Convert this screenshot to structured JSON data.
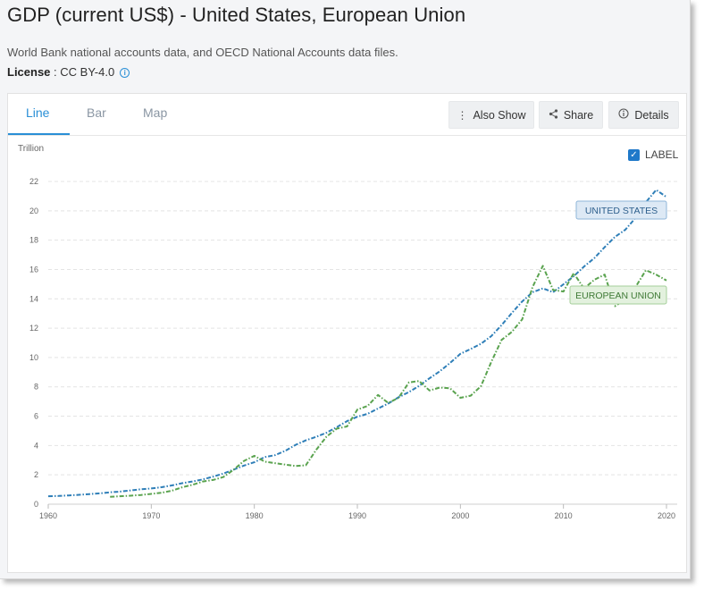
{
  "header": {
    "title": "GDP (current US$) - United States, European Union",
    "source": "World Bank national accounts data, and OECD National Accounts data files.",
    "license_label": "License",
    "license_value": " : CC BY-4.0"
  },
  "tabs": [
    {
      "label": "Line"
    },
    {
      "label": "Bar"
    },
    {
      "label": "Map"
    }
  ],
  "toolbar": {
    "also_show": "Also Show",
    "share": "Share",
    "details": "Details"
  },
  "label_toggle": {
    "text": "LABEL",
    "checked": true
  },
  "chart_data": {
    "type": "line",
    "ylabel": "Trillion",
    "ylim": [
      0,
      22
    ],
    "xlim": [
      1960,
      2020
    ],
    "yticks": [
      0,
      2,
      4,
      6,
      8,
      10,
      12,
      14,
      16,
      18,
      20,
      22
    ],
    "xticks": [
      1960,
      1970,
      1980,
      1990,
      2000,
      2010,
      2020
    ],
    "grid": true,
    "series": [
      {
        "name": "UNITED STATES",
        "color": "#2f7fb8",
        "label_bg": "#dde9f5",
        "label_border": "#8fb6d9",
        "x": [
          1960,
          1961,
          1962,
          1963,
          1964,
          1965,
          1966,
          1967,
          1968,
          1969,
          1970,
          1971,
          1972,
          1973,
          1974,
          1975,
          1976,
          1977,
          1978,
          1979,
          1980,
          1981,
          1982,
          1983,
          1984,
          1985,
          1986,
          1987,
          1988,
          1989,
          1990,
          1991,
          1992,
          1993,
          1994,
          1995,
          1996,
          1997,
          1998,
          1999,
          2000,
          2001,
          2002,
          2003,
          2004,
          2005,
          2006,
          2007,
          2008,
          2009,
          2010,
          2011,
          2012,
          2013,
          2014,
          2015,
          2016,
          2017,
          2018,
          2019,
          2020
        ],
        "values": [
          0.54,
          0.56,
          0.6,
          0.64,
          0.69,
          0.74,
          0.81,
          0.86,
          0.94,
          1.02,
          1.07,
          1.16,
          1.28,
          1.43,
          1.55,
          1.69,
          1.88,
          2.09,
          2.36,
          2.63,
          2.86,
          3.21,
          3.34,
          3.64,
          4.04,
          4.35,
          4.59,
          4.87,
          5.25,
          5.66,
          5.96,
          6.16,
          6.52,
          6.86,
          7.29,
          7.64,
          8.07,
          8.58,
          9.06,
          9.63,
          10.25,
          10.58,
          10.94,
          11.46,
          12.21,
          13.04,
          13.82,
          14.45,
          14.71,
          14.45,
          14.99,
          15.54,
          16.2,
          16.78,
          17.52,
          18.22,
          18.71,
          19.52,
          20.58,
          21.43,
          20.94
        ]
      },
      {
        "name": "EUROPEAN UNION",
        "color": "#5aa34f",
        "label_bg": "#e3f1de",
        "label_border": "#a5cf9a",
        "x": [
          1966,
          1967,
          1968,
          1969,
          1970,
          1971,
          1972,
          1973,
          1974,
          1975,
          1976,
          1977,
          1978,
          1979,
          1980,
          1981,
          1982,
          1983,
          1984,
          1985,
          1986,
          1987,
          1988,
          1989,
          1990,
          1991,
          1992,
          1993,
          1994,
          1995,
          1996,
          1997,
          1998,
          1999,
          2000,
          2001,
          2002,
          2003,
          2004,
          2005,
          2006,
          2007,
          2008,
          2009,
          2010,
          2011,
          2012,
          2013,
          2014,
          2015,
          2016,
          2017,
          2018,
          2019,
          2020
        ],
        "values": [
          0.5,
          0.54,
          0.58,
          0.63,
          0.7,
          0.78,
          0.92,
          1.15,
          1.32,
          1.55,
          1.65,
          1.85,
          2.35,
          2.95,
          3.3,
          2.9,
          2.8,
          2.7,
          2.6,
          2.65,
          3.7,
          4.6,
          5.15,
          5.3,
          6.45,
          6.7,
          7.45,
          6.9,
          7.25,
          8.3,
          8.4,
          7.75,
          7.95,
          7.9,
          7.25,
          7.4,
          8.05,
          9.7,
          11.2,
          11.75,
          12.6,
          14.8,
          16.25,
          14.6,
          14.5,
          15.75,
          14.7,
          15.3,
          15.65,
          13.5,
          13.95,
          14.8,
          15.95,
          15.65,
          15.25
        ]
      }
    ]
  }
}
